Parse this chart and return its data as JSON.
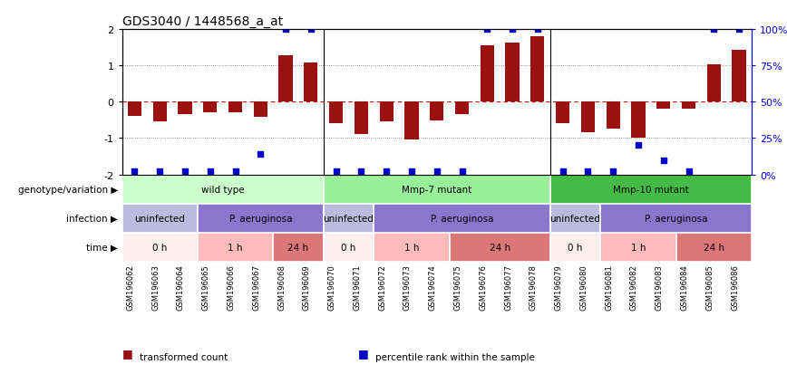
{
  "title": "GDS3040 / 1448568_a_at",
  "samples": [
    "GSM196062",
    "GSM196063",
    "GSM196064",
    "GSM196065",
    "GSM196066",
    "GSM196067",
    "GSM196068",
    "GSM196069",
    "GSM196070",
    "GSM196071",
    "GSM196072",
    "GSM196073",
    "GSM196074",
    "GSM196075",
    "GSM196076",
    "GSM196077",
    "GSM196078",
    "GSM196079",
    "GSM196080",
    "GSM196081",
    "GSM196082",
    "GSM196083",
    "GSM196084",
    "GSM196085",
    "GSM196086"
  ],
  "bar_values": [
    -0.38,
    -0.55,
    -0.35,
    -0.28,
    -0.3,
    -0.42,
    1.28,
    1.07,
    -0.6,
    -0.9,
    -0.55,
    -1.05,
    -0.52,
    -0.35,
    1.55,
    1.62,
    1.8,
    -0.6,
    -0.85,
    -0.75,
    -1.0,
    -0.18,
    -0.18,
    1.02,
    1.42
  ],
  "percentile_values": [
    2,
    2,
    2,
    2,
    2,
    14,
    100,
    100,
    2,
    2,
    2,
    2,
    2,
    2,
    100,
    100,
    100,
    2,
    2,
    2,
    20,
    10,
    2,
    100,
    100
  ],
  "bar_color": "#9B1111",
  "dot_color": "#0000CC",
  "ylim": [
    -2,
    2
  ],
  "yticks": [
    -2,
    -1,
    0,
    1,
    2
  ],
  "y2ticks": [
    0,
    25,
    50,
    75,
    100
  ],
  "y2ticklabels": [
    "0%",
    "25%",
    "50%",
    "75%",
    "100%"
  ],
  "dotted_line_color": "#777777",
  "zero_line_color": "#CC0000",
  "genotype_groups": [
    {
      "label": "wild type",
      "start": 0,
      "end": 7,
      "color": "#CCFFCC"
    },
    {
      "label": "Mmp-7 mutant",
      "start": 8,
      "end": 16,
      "color": "#99EE99"
    },
    {
      "label": "Mmp-10 mutant",
      "start": 17,
      "end": 24,
      "color": "#44BB44"
    }
  ],
  "infection_groups": [
    {
      "label": "uninfected",
      "start": 0,
      "end": 2,
      "color": "#BBBBDD"
    },
    {
      "label": "P. aeruginosa",
      "start": 3,
      "end": 7,
      "color": "#8877CC"
    },
    {
      "label": "uninfected",
      "start": 8,
      "end": 9,
      "color": "#BBBBDD"
    },
    {
      "label": "P. aeruginosa",
      "start": 10,
      "end": 16,
      "color": "#8877CC"
    },
    {
      "label": "uninfected",
      "start": 17,
      "end": 18,
      "color": "#BBBBDD"
    },
    {
      "label": "P. aeruginosa",
      "start": 19,
      "end": 24,
      "color": "#8877CC"
    }
  ],
  "time_groups": [
    {
      "label": "0 h",
      "start": 0,
      "end": 2,
      "color": "#FFEEEE"
    },
    {
      "label": "1 h",
      "start": 3,
      "end": 5,
      "color": "#FFBBBB"
    },
    {
      "label": "24 h",
      "start": 6,
      "end": 7,
      "color": "#DD7777"
    },
    {
      "label": "0 h",
      "start": 8,
      "end": 9,
      "color": "#FFEEEE"
    },
    {
      "label": "1 h",
      "start": 10,
      "end": 12,
      "color": "#FFBBBB"
    },
    {
      "label": "24 h",
      "start": 13,
      "end": 16,
      "color": "#DD7777"
    },
    {
      "label": "0 h",
      "start": 17,
      "end": 18,
      "color": "#FFEEEE"
    },
    {
      "label": "1 h",
      "start": 19,
      "end": 21,
      "color": "#FFBBBB"
    },
    {
      "label": "24 h",
      "start": 22,
      "end": 24,
      "color": "#DD7777"
    }
  ],
  "row_labels": [
    "genotype/variation",
    "infection",
    "time"
  ],
  "legend_items": [
    {
      "label": "transformed count",
      "color": "#9B1111"
    },
    {
      "label": "percentile rank within the sample",
      "color": "#0000CC"
    }
  ],
  "n_samples": 25,
  "background_color": "#FFFFFF"
}
